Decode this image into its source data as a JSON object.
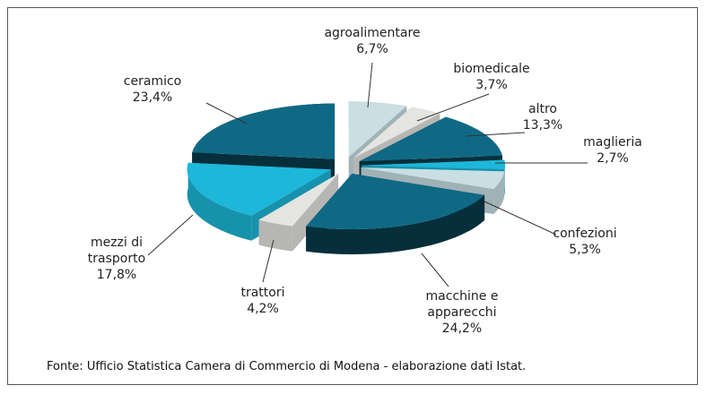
{
  "chart_data": {
    "type": "pie",
    "categories": [
      "agroalimentare",
      "biomedicale",
      "altro",
      "maglieria",
      "confezioni",
      "macchine e apparecchi",
      "trattori",
      "mezzi di trasporto",
      "ceramico"
    ],
    "values": [
      6.7,
      3.7,
      13.3,
      2.7,
      5.3,
      24.2,
      4.2,
      17.8,
      23.4
    ],
    "value_labels": [
      "6,7%",
      "3,7%",
      "13,3%",
      "2,7%",
      "5,3%",
      "24,2%",
      "4,2%",
      "17,8%",
      "23,4%"
    ],
    "colors": [
      "#c9dfe4",
      "#e4e4e1",
      "#0f6985",
      "#1db7d9",
      "#c9dfe4",
      "#0f6985",
      "#e4e4e1",
      "#1db7d9",
      "#0f6985"
    ],
    "source": "Fonte: Ufficio Statistica Camera di Commercio di Modena - elaborazione dati Istat."
  }
}
